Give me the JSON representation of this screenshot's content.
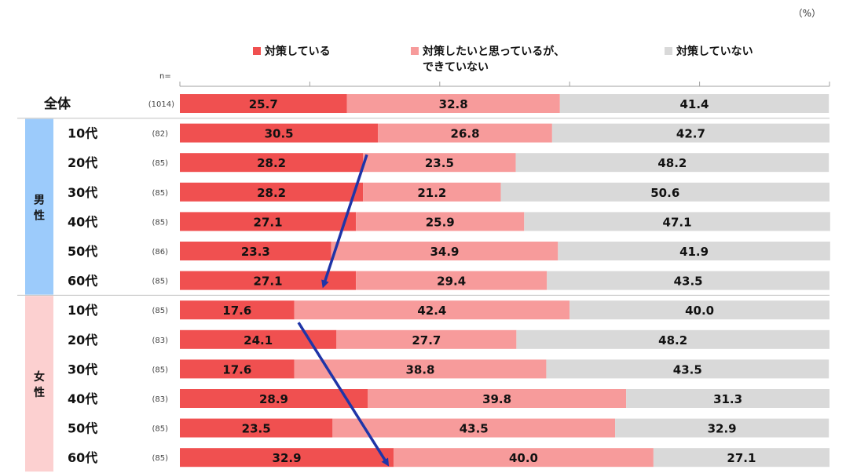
{
  "unit_label": "（%）",
  "n_label": "n=",
  "colors": {
    "series": [
      "#f05050",
      "#f79b9b",
      "#d9d9d9"
    ],
    "male_band": "#9ccbfb",
    "female_band": "#fcd0d0",
    "arrow": "#1f35a8"
  },
  "chart_data": {
    "type": "bar",
    "orientation": "horizontal",
    "stacked": true,
    "xlim": [
      0,
      100
    ],
    "grid": false,
    "legend_position": "top",
    "series": [
      {
        "name": "対策している",
        "values": [
          25.7,
          30.5,
          28.2,
          28.2,
          27.1,
          23.3,
          27.1,
          17.6,
          24.1,
          17.6,
          28.9,
          23.5,
          32.9
        ]
      },
      {
        "name": "対策したいと思っているが、\nできていない",
        "values": [
          32.8,
          26.8,
          23.5,
          21.2,
          25.9,
          34.9,
          29.4,
          42.4,
          27.7,
          38.8,
          39.8,
          43.5,
          40.0
        ]
      },
      {
        "name": "対策していない",
        "values": [
          41.4,
          42.7,
          48.2,
          50.6,
          47.1,
          41.9,
          43.5,
          40.0,
          48.2,
          43.5,
          31.3,
          32.9,
          27.1
        ]
      }
    ],
    "categories": [
      "全体",
      "10代",
      "20代",
      "30代",
      "40代",
      "50代",
      "60代",
      "10代",
      "20代",
      "30代",
      "40代",
      "50代",
      "60代"
    ],
    "n": [
      "(1014)",
      "(82)",
      "(85)",
      "(85)",
      "(85)",
      "(86)",
      "(85)",
      "(85)",
      "(83)",
      "(85)",
      "(83)",
      "(85)",
      "(85)"
    ],
    "groups": [
      {
        "label": "男性",
        "rows": [
          1,
          6
        ]
      },
      {
        "label": "女性",
        "rows": [
          7,
          12
        ]
      }
    ],
    "value_format": "0.0"
  }
}
